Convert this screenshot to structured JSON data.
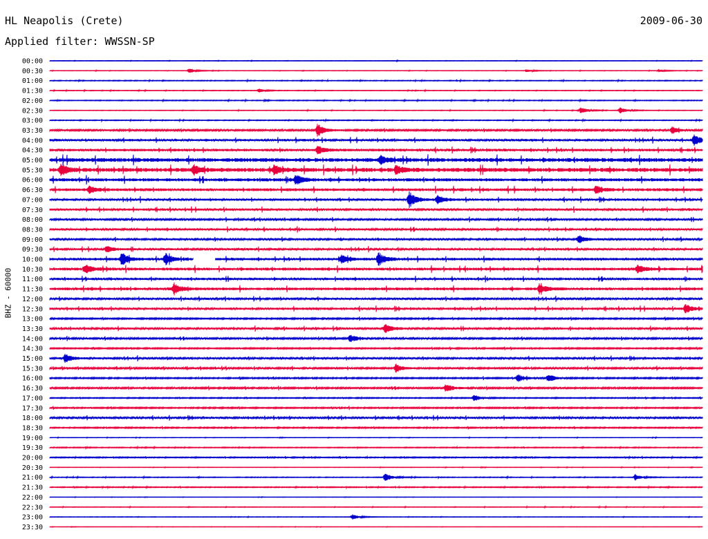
{
  "header": {
    "station": "HL Neapolis (Crete)",
    "date": "2009-06-30",
    "filter_label": "Applied filter: WWSSN-SP"
  },
  "axis": {
    "channel_label": "BHZ - 60000"
  },
  "colors": {
    "trace_even": "#0000cc",
    "trace_odd": "#e8003c",
    "background": "#ffffff",
    "text": "#000000"
  },
  "chart_data": {
    "type": "line",
    "description": "helicorder: 48 rows of 30 minutes each, alternating blue and red traces",
    "row_labels": [
      "00:00",
      "00:30",
      "01:00",
      "01:30",
      "02:00",
      "02:30",
      "03:00",
      "03:30",
      "04:00",
      "04:30",
      "05:00",
      "05:30",
      "06:00",
      "06:30",
      "07:00",
      "07:30",
      "08:00",
      "08:30",
      "09:00",
      "09:30",
      "10:00",
      "10:30",
      "11:00",
      "11:30",
      "12:00",
      "12:30",
      "13:00",
      "13:30",
      "14:00",
      "14:30",
      "15:00",
      "15:30",
      "16:00",
      "16:30",
      "17:00",
      "17:30",
      "18:00",
      "18:30",
      "19:00",
      "19:30",
      "20:00",
      "20:30",
      "21:00",
      "21:30",
      "22:00",
      "22:30",
      "23:00",
      "23:30"
    ],
    "row_noise_level": [
      0.3,
      0.3,
      0.5,
      0.4,
      0.5,
      0.4,
      0.5,
      1.2,
      1.6,
      1.8,
      2.8,
      2.8,
      2.2,
      2.0,
      1.6,
      1.6,
      1.3,
      1.5,
      1.4,
      1.5,
      1.8,
      2.0,
      1.6,
      2.0,
      1.4,
      1.6,
      1.0,
      1.4,
      1.2,
      0.9,
      1.4,
      1.2,
      0.9,
      1.1,
      0.7,
      0.9,
      1.4,
      0.8,
      0.3,
      0.6,
      0.7,
      0.3,
      0.5,
      0.6,
      0.2,
      0.4,
      0.3,
      0.2
    ],
    "events": [
      {
        "row": 1,
        "minute": 6.4,
        "amp": 3
      },
      {
        "row": 1,
        "minute": 21.9,
        "amp": 2
      },
      {
        "row": 1,
        "minute": 28.0,
        "amp": 2
      },
      {
        "row": 3,
        "minute": 9.6,
        "amp": 3
      },
      {
        "row": 5,
        "minute": 24.4,
        "amp": 5
      },
      {
        "row": 5,
        "minute": 26.2,
        "amp": 5
      },
      {
        "row": 7,
        "minute": 12.3,
        "amp": 10
      },
      {
        "row": 7,
        "minute": 28.6,
        "amp": 5
      },
      {
        "row": 8,
        "minute": 29.6,
        "amp": 9
      },
      {
        "row": 9,
        "minute": 12.3,
        "amp": 6
      },
      {
        "row": 10,
        "minute": 15.2,
        "amp": 6
      },
      {
        "row": 11,
        "minute": 0.5,
        "amp": 9
      },
      {
        "row": 11,
        "minute": 6.6,
        "amp": 7
      },
      {
        "row": 11,
        "minute": 10.3,
        "amp": 7
      },
      {
        "row": 11,
        "minute": 15.9,
        "amp": 6
      },
      {
        "row": 12,
        "minute": 11.3,
        "amp": 8
      },
      {
        "row": 13,
        "minute": 1.8,
        "amp": 6
      },
      {
        "row": 13,
        "minute": 25.1,
        "amp": 6
      },
      {
        "row": 14,
        "minute": 16.5,
        "amp": 12
      },
      {
        "row": 14,
        "minute": 17.8,
        "amp": 6
      },
      {
        "row": 18,
        "minute": 24.3,
        "amp": 6
      },
      {
        "row": 19,
        "minute": 2.6,
        "amp": 5
      },
      {
        "row": 20,
        "minute": 3.3,
        "amp": 9
      },
      {
        "row": 20,
        "minute": 5.3,
        "amp": 9
      },
      {
        "row": 20,
        "minute": 13.4,
        "amp": 6
      },
      {
        "row": 20,
        "minute": 15.1,
        "amp": 10
      },
      {
        "row": 21,
        "minute": 1.6,
        "amp": 7
      },
      {
        "row": 21,
        "minute": 27.0,
        "amp": 6
      },
      {
        "row": 21,
        "minute": 30.0,
        "amp": 6
      },
      {
        "row": 23,
        "minute": 5.7,
        "amp": 8
      },
      {
        "row": 23,
        "minute": 22.5,
        "amp": 7
      },
      {
        "row": 25,
        "minute": 29.2,
        "amp": 7
      },
      {
        "row": 27,
        "minute": 15.4,
        "amp": 7
      },
      {
        "row": 28,
        "minute": 13.8,
        "amp": 6
      },
      {
        "row": 30,
        "minute": 0.7,
        "amp": 7
      },
      {
        "row": 31,
        "minute": 15.9,
        "amp": 6
      },
      {
        "row": 32,
        "minute": 21.5,
        "amp": 6
      },
      {
        "row": 32,
        "minute": 22.9,
        "amp": 6
      },
      {
        "row": 33,
        "minute": 18.2,
        "amp": 6
      },
      {
        "row": 34,
        "minute": 19.5,
        "amp": 5
      },
      {
        "row": 42,
        "minute": 15.4,
        "amp": 6
      },
      {
        "row": 42,
        "minute": 26.9,
        "amp": 4
      },
      {
        "row": 46,
        "minute": 13.9,
        "amp": 4
      }
    ],
    "gaps": [
      {
        "row": 20,
        "start_minute": 6.6,
        "end_minute": 7.6
      }
    ]
  }
}
